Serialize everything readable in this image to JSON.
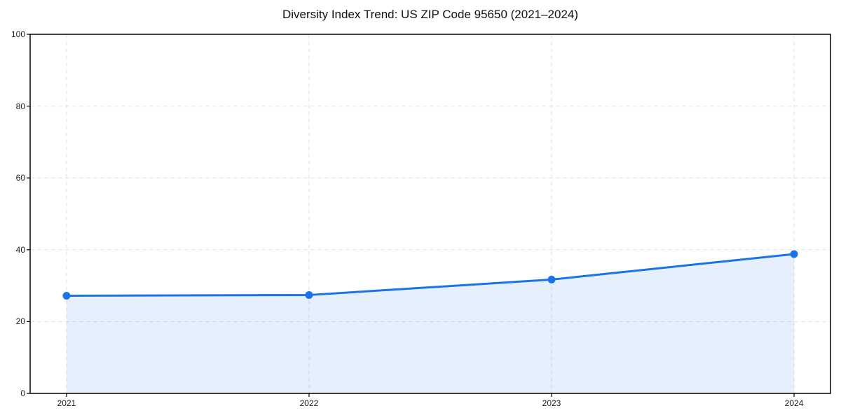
{
  "chart_data": {
    "type": "area",
    "title": "Diversity Index Trend: US ZIP Code 95650 (2021–2024)",
    "categories": [
      "2021",
      "2022",
      "2023",
      "2024"
    ],
    "series": [
      {
        "name": "Diversity Index",
        "values": [
          27.2,
          27.4,
          31.7,
          38.8
        ]
      }
    ],
    "xlabel": "",
    "ylabel": "",
    "ylim": [
      0,
      100
    ],
    "yticks": [
      0,
      20,
      40,
      60,
      80,
      100
    ],
    "grid": true,
    "grid_style": "dashed",
    "legend": "none",
    "marker": "circle",
    "colors": {
      "line": "#1a73e8",
      "marker": "#1a73e8",
      "fill": "#1a73e8",
      "fill_opacity": 0.11,
      "grid": "#e2e2e2",
      "axis": "#000000",
      "tick_text": "#1a1a1a",
      "background": "#ffffff"
    }
  }
}
